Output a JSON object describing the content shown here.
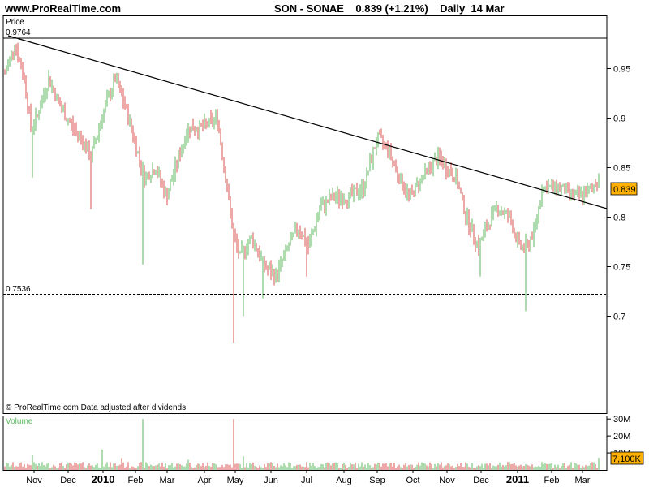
{
  "header": {
    "site": "www.ProRealTime.com",
    "ticker": "SON - SONAE    0.839 (+1.21%)    Daily  14 Mar"
  },
  "price_panel": {
    "label": "Price",
    "level_high_label": "0.9764",
    "level_low_label": "0.7536",
    "last_price_badge": "0.839",
    "footer": "© ProRealTime.com  Data adjusted after dividends"
  },
  "volume_panel": {
    "label": "Volume",
    "last_volume_badge": "7,100K"
  },
  "colors": {
    "up": "#5cb85c",
    "down": "#d9534f",
    "badge": "#ffb000",
    "trendline": "#000000"
  },
  "chart_data": [
    {
      "type": "candlestick-bars",
      "title": "SON - SONAE",
      "ylabel": "Price",
      "ylim": [
        0.67,
        0.99
      ],
      "y_ticks": [
        "0.95",
        "0.9",
        "0.85",
        "0.8",
        "0.75",
        "0.7"
      ],
      "x_ticks": [
        "Nov",
        "Dec",
        "2010",
        "Feb",
        "Mar",
        "Apr",
        "May",
        "Jun",
        "Jul",
        "Aug",
        "Sep",
        "Oct",
        "Nov",
        "Dec",
        "2011",
        "Feb",
        "Mar"
      ],
      "last_price": 0.839,
      "horizontal_levels": [
        {
          "value": 0.9764,
          "style": "solid",
          "label": "0.9764"
        },
        {
          "value": 0.7536,
          "style": "dashed",
          "label": "0.7536"
        }
      ],
      "trendline": {
        "from": {
          "x": "Oct 2009",
          "y": 0.976
        },
        "to": {
          "x": "14 Mar 2011",
          "y": 0.824
        }
      },
      "series": [
        {
          "x": "Oct 2009",
          "y": 0.97
        },
        {
          "x": "Nov 2009",
          "y": 0.88
        },
        {
          "x": "Dec 2009",
          "y": 0.88
        },
        {
          "x": "2010",
          "y": 0.94
        },
        {
          "x": "Feb",
          "y": 0.87
        },
        {
          "x": "Mar",
          "y": 0.83
        },
        {
          "x": "Apr",
          "y": 0.89
        },
        {
          "x": "May",
          "y": 0.77
        },
        {
          "x": "Jun",
          "y": 0.74
        },
        {
          "x": "Jul",
          "y": 0.79
        },
        {
          "x": "Aug",
          "y": 0.83
        },
        {
          "x": "Sep",
          "y": 0.88
        },
        {
          "x": "Oct",
          "y": 0.83
        },
        {
          "x": "Nov",
          "y": 0.85
        },
        {
          "x": "Dec",
          "y": 0.79
        },
        {
          "x": "2011",
          "y": 0.8
        },
        {
          "x": "Feb",
          "y": 0.82
        },
        {
          "x": "Mar",
          "y": 0.839
        }
      ]
    },
    {
      "type": "bar",
      "title": "Volume",
      "y_ticks": [
        "30M",
        "20M",
        "10M"
      ],
      "ylim": [
        0,
        32000000
      ],
      "last_volume": 7100000,
      "peaks": [
        {
          "x": "Feb 2010",
          "y": 30000000
        },
        {
          "x": "May 2010",
          "y": 30000000
        },
        {
          "x": "Jan 2010",
          "y": 12000000
        },
        {
          "x": "Nov 2009",
          "y": 9000000
        },
        {
          "x": "Jun 2010",
          "y": 8000000
        }
      ]
    }
  ]
}
